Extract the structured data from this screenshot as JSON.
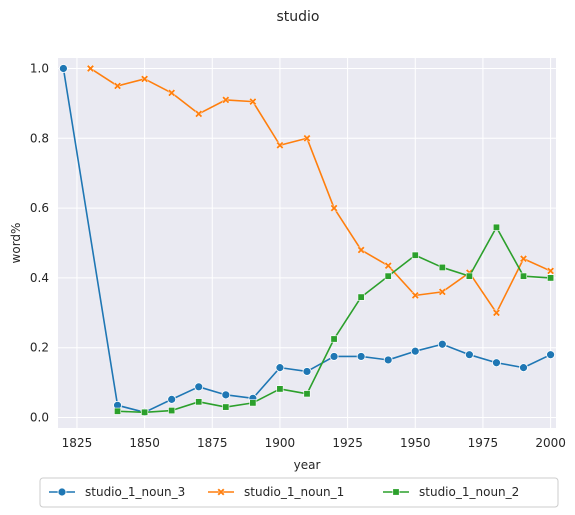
{
  "chart_data": {
    "type": "line",
    "title": "studio",
    "xlabel": "year",
    "ylabel": "word%",
    "xlim": [
      1818,
      2002
    ],
    "ylim": [
      -0.03,
      1.03
    ],
    "xticks": [
      1825,
      1850,
      1875,
      1900,
      1925,
      1950,
      1975,
      2000
    ],
    "yticks": [
      0.0,
      0.2,
      0.4,
      0.6,
      0.8,
      1.0
    ],
    "grid": true,
    "legend_position": "bottom",
    "series": [
      {
        "name": "studio_1_noun_3",
        "color": "#1f77b4",
        "marker": "circle",
        "x": [
          1820,
          1840,
          1850,
          1860,
          1870,
          1880,
          1890,
          1900,
          1910,
          1920,
          1930,
          1940,
          1950,
          1960,
          1970,
          1980,
          1990,
          2000
        ],
        "y": [
          1.0,
          0.035,
          0.015,
          0.052,
          0.088,
          0.065,
          0.055,
          0.143,
          0.132,
          0.175,
          0.175,
          0.165,
          0.19,
          0.21,
          0.18,
          0.157,
          0.143,
          0.18
        ]
      },
      {
        "name": "studio_1_noun_1",
        "color": "#ff7f0e",
        "marker": "x",
        "x": [
          1830,
          1840,
          1850,
          1860,
          1870,
          1880,
          1890,
          1900,
          1910,
          1920,
          1930,
          1940,
          1950,
          1960,
          1970,
          1980,
          1990,
          2000
        ],
        "y": [
          1.0,
          0.95,
          0.97,
          0.93,
          0.87,
          0.91,
          0.905,
          0.78,
          0.8,
          0.6,
          0.48,
          0.435,
          0.35,
          0.36,
          0.415,
          0.3,
          0.455,
          0.42
        ]
      },
      {
        "name": "studio_1_noun_2",
        "color": "#2ca02c",
        "marker": "square",
        "x": [
          1840,
          1850,
          1860,
          1870,
          1880,
          1890,
          1900,
          1910,
          1920,
          1930,
          1940,
          1950,
          1960,
          1970,
          1980,
          1990,
          2000
        ],
        "y": [
          0.018,
          0.015,
          0.02,
          0.045,
          0.03,
          0.042,
          0.082,
          0.068,
          0.225,
          0.345,
          0.405,
          0.465,
          0.43,
          0.405,
          0.545,
          0.405,
          0.4
        ]
      }
    ]
  }
}
